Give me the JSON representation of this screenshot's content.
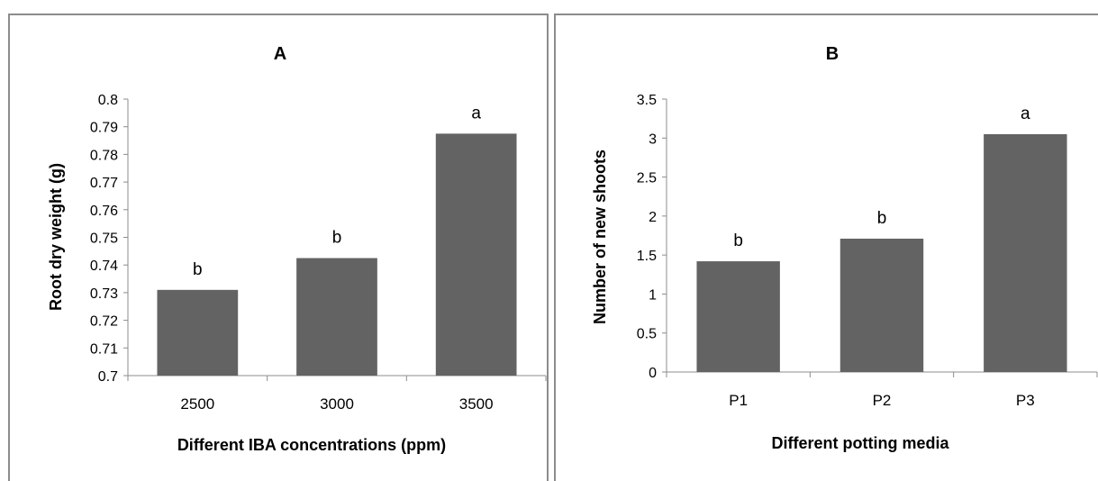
{
  "chart_data": [
    {
      "type": "bar",
      "title": "A",
      "xlabel": "Different IBA concentrations  (ppm)",
      "ylabel": "Root dry weight (g)",
      "categories": [
        "2500",
        "3000",
        "3500"
      ],
      "values": [
        0.731,
        0.7425,
        0.7875
      ],
      "bar_labels": [
        "b",
        "b",
        "a"
      ],
      "ylim": [
        0.7,
        0.8
      ],
      "yticks": [
        "0.7",
        "0.71",
        "0.72",
        "0.73",
        "0.74",
        "0.75",
        "0.76",
        "0.77",
        "0.78",
        "0.79",
        "0.8"
      ],
      "grid": false,
      "bar_color": "#636363"
    },
    {
      "type": "bar",
      "title": "B",
      "xlabel": "Different potting media",
      "ylabel": "Number of new shoots",
      "categories": [
        "P1",
        "P2",
        "P3"
      ],
      "values": [
        1.42,
        1.71,
        3.05
      ],
      "bar_labels": [
        "b",
        "b",
        "a"
      ],
      "ylim": [
        0,
        3.5
      ],
      "yticks": [
        "0",
        "0.5",
        "1",
        "1.5",
        "2",
        "2.5",
        "3",
        "3.5"
      ],
      "grid": false,
      "bar_color": "#636363"
    }
  ]
}
